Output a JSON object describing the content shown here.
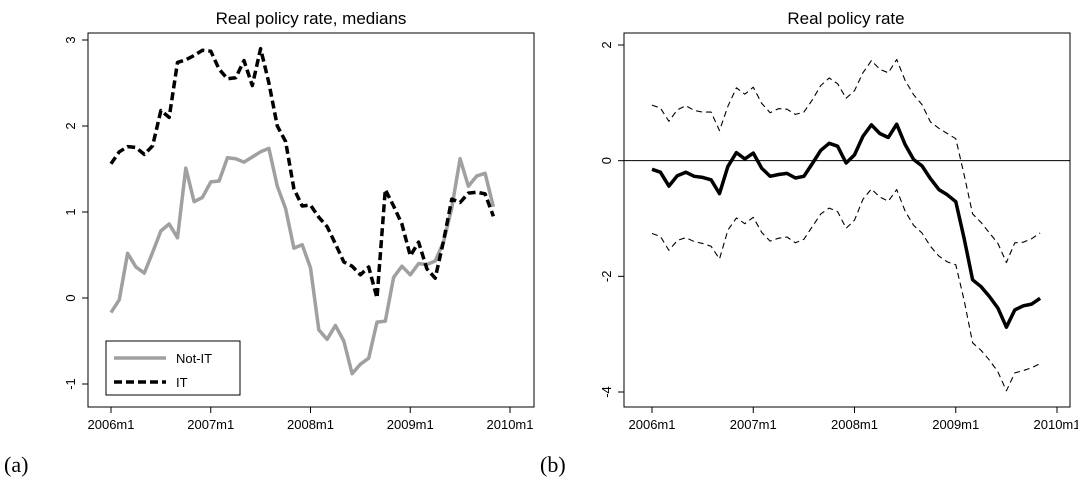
{
  "panels": [
    {
      "label": "(a)",
      "chart_data": {
        "type": "line",
        "title": "Real policy rate, medians",
        "xlabel": "",
        "ylabel": "",
        "x_unit": "month index from 2006m1",
        "xlim": [
          0,
          47
        ],
        "ylim": [
          -1,
          3
        ],
        "x_ticks": [
          0,
          12,
          24,
          36,
          48
        ],
        "x_tick_labels": [
          "2006m1",
          "2007m1",
          "2008m1",
          "2009m1",
          "2010m1"
        ],
        "y_ticks": [
          -1,
          0,
          1,
          2,
          3
        ],
        "y_tick_labels": [
          "-1",
          "0",
          "1",
          "2",
          "3"
        ],
        "grid": false,
        "legend_position": "bottom-left",
        "series": [
          {
            "name": "Not-IT",
            "color": "#a0a0a0",
            "style": "solid",
            "x": [
              0,
              1,
              2,
              3,
              4,
              5,
              6,
              7,
              8,
              9,
              10,
              11,
              12,
              13,
              14,
              15,
              16,
              17,
              18,
              19,
              20,
              21,
              22,
              23,
              24,
              25,
              26,
              27,
              28,
              29,
              30,
              31,
              32,
              33,
              34,
              35,
              36,
              37,
              38,
              39,
              40,
              41,
              42,
              43,
              44,
              45,
              46
            ],
            "values": [
              -0.17,
              -0.02,
              0.52,
              0.36,
              0.29,
              0.53,
              0.78,
              0.86,
              0.7,
              1.51,
              1.12,
              1.17,
              1.35,
              1.36,
              1.63,
              1.62,
              1.58,
              1.64,
              1.7,
              1.74,
              1.3,
              1.04,
              0.58,
              0.62,
              0.35,
              -0.37,
              -0.48,
              -0.32,
              -0.5,
              -0.88,
              -0.77,
              -0.7,
              -0.28,
              -0.27,
              0.24,
              0.37,
              0.27,
              0.4,
              0.39,
              0.43,
              0.65,
              1.05,
              1.62,
              1.3,
              1.42,
              1.45,
              1.06
            ]
          },
          {
            "name": "IT",
            "color": "#000000",
            "style": "dashed",
            "x": [
              0,
              1,
              2,
              3,
              4,
              5,
              6,
              7,
              8,
              9,
              10,
              11,
              12,
              13,
              14,
              15,
              16,
              17,
              18,
              19,
              20,
              21,
              22,
              23,
              24,
              25,
              26,
              27,
              28,
              29,
              30,
              31,
              32,
              33,
              34,
              35,
              36,
              37,
              38,
              39,
              40,
              41,
              42,
              43,
              44,
              45,
              46
            ],
            "values": [
              1.56,
              1.7,
              1.76,
              1.75,
              1.67,
              1.77,
              2.18,
              2.1,
              2.74,
              2.77,
              2.82,
              2.88,
              2.87,
              2.66,
              2.55,
              2.56,
              2.76,
              2.47,
              2.9,
              2.5,
              2.0,
              1.82,
              1.27,
              1.07,
              1.08,
              0.94,
              0.83,
              0.63,
              0.42,
              0.37,
              0.27,
              0.36,
              0.0,
              1.26,
              1.07,
              0.86,
              0.49,
              0.65,
              0.34,
              0.23,
              0.66,
              1.15,
              1.11,
              1.22,
              1.23,
              1.21,
              0.95
            ]
          }
        ]
      }
    },
    {
      "label": "(b)",
      "chart_data": {
        "type": "line",
        "title": "Real policy rate",
        "xlabel": "",
        "ylabel": "",
        "x_unit": "month index from 2006m1",
        "xlim": [
          0,
          47
        ],
        "ylim": [
          -4,
          2
        ],
        "x_ticks": [
          0,
          12,
          24,
          36,
          48
        ],
        "x_tick_labels": [
          "2006m1",
          "2007m1",
          "2008m1",
          "2009m1",
          "2010m1"
        ],
        "y_ticks": [
          -4,
          -2,
          0,
          2
        ],
        "y_tick_labels": [
          "-4",
          "-2",
          "0",
          "2"
        ],
        "grid": false,
        "reference_line_y": 0,
        "series": [
          {
            "color": "#000000",
            "style": "thick-solid",
            "x": [
              0,
              1,
              2,
              3,
              4,
              5,
              6,
              7,
              8,
              9,
              10,
              11,
              12,
              13,
              14,
              15,
              16,
              17,
              18,
              19,
              20,
              21,
              22,
              23,
              24,
              25,
              26,
              27,
              28,
              29,
              30,
              31,
              32,
              33,
              34,
              35,
              36,
              37,
              38,
              39,
              40,
              41,
              42,
              43,
              44,
              45,
              46
            ],
            "values": [
              -0.15,
              -0.2,
              -0.44,
              -0.26,
              -0.2,
              -0.27,
              -0.29,
              -0.33,
              -0.57,
              -0.1,
              0.14,
              0.03,
              0.13,
              -0.13,
              -0.27,
              -0.24,
              -0.22,
              -0.3,
              -0.27,
              -0.05,
              0.18,
              0.3,
              0.25,
              -0.04,
              0.1,
              0.42,
              0.62,
              0.47,
              0.4,
              0.63,
              0.28,
              0.02,
              -0.09,
              -0.31,
              -0.5,
              -0.59,
              -0.71,
              -1.35,
              -2.06,
              -2.18,
              -2.35,
              -2.55,
              -2.88,
              -2.58,
              -2.51,
              -2.48,
              -2.38
            ]
          },
          {
            "color": "#000000",
            "style": "thin-dashed",
            "x": [
              0,
              1,
              2,
              3,
              4,
              5,
              6,
              7,
              8,
              9,
              10,
              11,
              12,
              13,
              14,
              15,
              16,
              17,
              18,
              19,
              20,
              21,
              22,
              23,
              24,
              25,
              26,
              27,
              28,
              29,
              30,
              31,
              32,
              33,
              34,
              35,
              36,
              37,
              38,
              39,
              40,
              41,
              42,
              43,
              44,
              45,
              46
            ],
            "values": [
              0.96,
              0.91,
              0.68,
              0.88,
              0.95,
              0.87,
              0.84,
              0.84,
              0.52,
              0.94,
              1.26,
              1.15,
              1.27,
              0.99,
              0.83,
              0.9,
              0.89,
              0.8,
              0.84,
              1.05,
              1.3,
              1.43,
              1.33,
              1.08,
              1.21,
              1.52,
              1.73,
              1.58,
              1.52,
              1.75,
              1.39,
              1.14,
              0.97,
              0.67,
              0.56,
              0.47,
              0.38,
              -0.25,
              -0.92,
              -1.07,
              -1.25,
              -1.43,
              -1.76,
              -1.42,
              -1.41,
              -1.35,
              -1.25
            ]
          },
          {
            "color": "#000000",
            "style": "thin-dashed",
            "x": [
              0,
              1,
              2,
              3,
              4,
              5,
              6,
              7,
              8,
              9,
              10,
              11,
              12,
              13,
              14,
              15,
              16,
              17,
              18,
              19,
              20,
              21,
              22,
              23,
              24,
              25,
              26,
              27,
              28,
              29,
              30,
              31,
              32,
              33,
              34,
              35,
              36,
              37,
              38,
              39,
              40,
              41,
              42,
              43,
              44,
              45,
              46
            ],
            "values": [
              -1.26,
              -1.31,
              -1.55,
              -1.38,
              -1.33,
              -1.4,
              -1.43,
              -1.48,
              -1.7,
              -1.2,
              -0.99,
              -1.09,
              -0.98,
              -1.24,
              -1.39,
              -1.34,
              -1.32,
              -1.42,
              -1.36,
              -1.14,
              -0.92,
              -0.82,
              -0.88,
              -1.17,
              -1.03,
              -0.67,
              -0.49,
              -0.63,
              -0.7,
              -0.5,
              -0.87,
              -1.12,
              -1.25,
              -1.48,
              -1.65,
              -1.75,
              -1.8,
              -2.42,
              -3.15,
              -3.28,
              -3.45,
              -3.65,
              -3.98,
              -3.67,
              -3.63,
              -3.58,
              -3.51
            ]
          }
        ]
      }
    }
  ]
}
